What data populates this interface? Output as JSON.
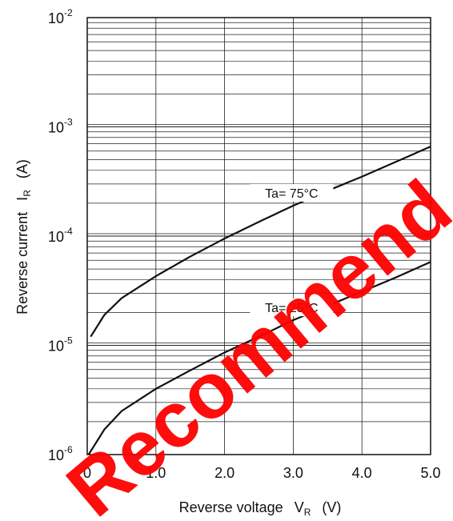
{
  "chart_data": {
    "type": "line",
    "xlabel": {
      "text": "Reverse voltage",
      "symbol": "V",
      "subscript": "R",
      "unit": "(V)"
    },
    "ylabel": {
      "text": "Reverse current",
      "symbol": "I",
      "subscript": "R",
      "unit": "(A)"
    },
    "xlim": [
      0,
      5.0
    ],
    "ylim": [
      1e-06,
      0.01
    ],
    "yscale": "log",
    "grid": true,
    "x_ticks": [
      "0",
      "1.0",
      "2.0",
      "3.0",
      "4.0",
      "5.0"
    ],
    "y_ticks": [
      {
        "base": "10",
        "exp": "-6"
      },
      {
        "base": "10",
        "exp": "-5"
      },
      {
        "base": "10",
        "exp": "-4"
      },
      {
        "base": "10",
        "exp": "-3"
      },
      {
        "base": "10",
        "exp": "-2"
      }
    ],
    "series": [
      {
        "name": "Ta= 75°C",
        "x": [
          0.05,
          0.25,
          0.5,
          1.0,
          1.5,
          2.0,
          2.5,
          3.0,
          3.5,
          4.0,
          4.5,
          5.0
        ],
        "y": [
          1.2e-05,
          1.9e-05,
          2.7e-05,
          4.3e-05,
          6.5e-05,
          9.5e-05,
          0.000135,
          0.00019,
          0.00026,
          0.00035,
          0.00048,
          0.00066
        ]
      },
      {
        "name": "Ta= 25°C",
        "x": [
          0.02,
          0.25,
          0.5,
          1.0,
          1.5,
          2.0,
          2.5,
          3.0,
          3.5,
          4.0,
          4.5,
          5.0
        ],
        "y": [
          1e-06,
          1.7e-06,
          2.5e-06,
          4e-06,
          5.9e-06,
          8.6e-06,
          1.2e-05,
          1.7e-05,
          2.3e-05,
          3.1e-05,
          4.2e-05,
          5.8e-05
        ]
      }
    ],
    "watermark": "Recommend"
  }
}
